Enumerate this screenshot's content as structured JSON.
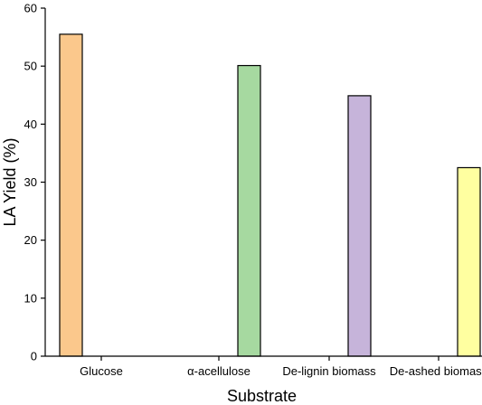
{
  "chart_data": {
    "type": "bar",
    "categories": [
      "Glucose",
      "α-acellulose",
      "De-lignin biomass",
      "De-ashed biomass"
    ],
    "values": [
      55.5,
      50.1,
      44.9,
      32.5
    ],
    "colors": [
      "#FBC88C",
      "#A6D9A0",
      "#C6B4DA",
      "#FFFFA0"
    ],
    "bar_alignment": [
      "left",
      "right",
      "right",
      "right"
    ],
    "xlabel": "Substrate",
    "ylabel": "LA Yield (%)",
    "ylim": [
      0,
      60
    ],
    "yticks": [
      0,
      10,
      20,
      30,
      40,
      50,
      60
    ],
    "grid": false,
    "legend": "none"
  }
}
